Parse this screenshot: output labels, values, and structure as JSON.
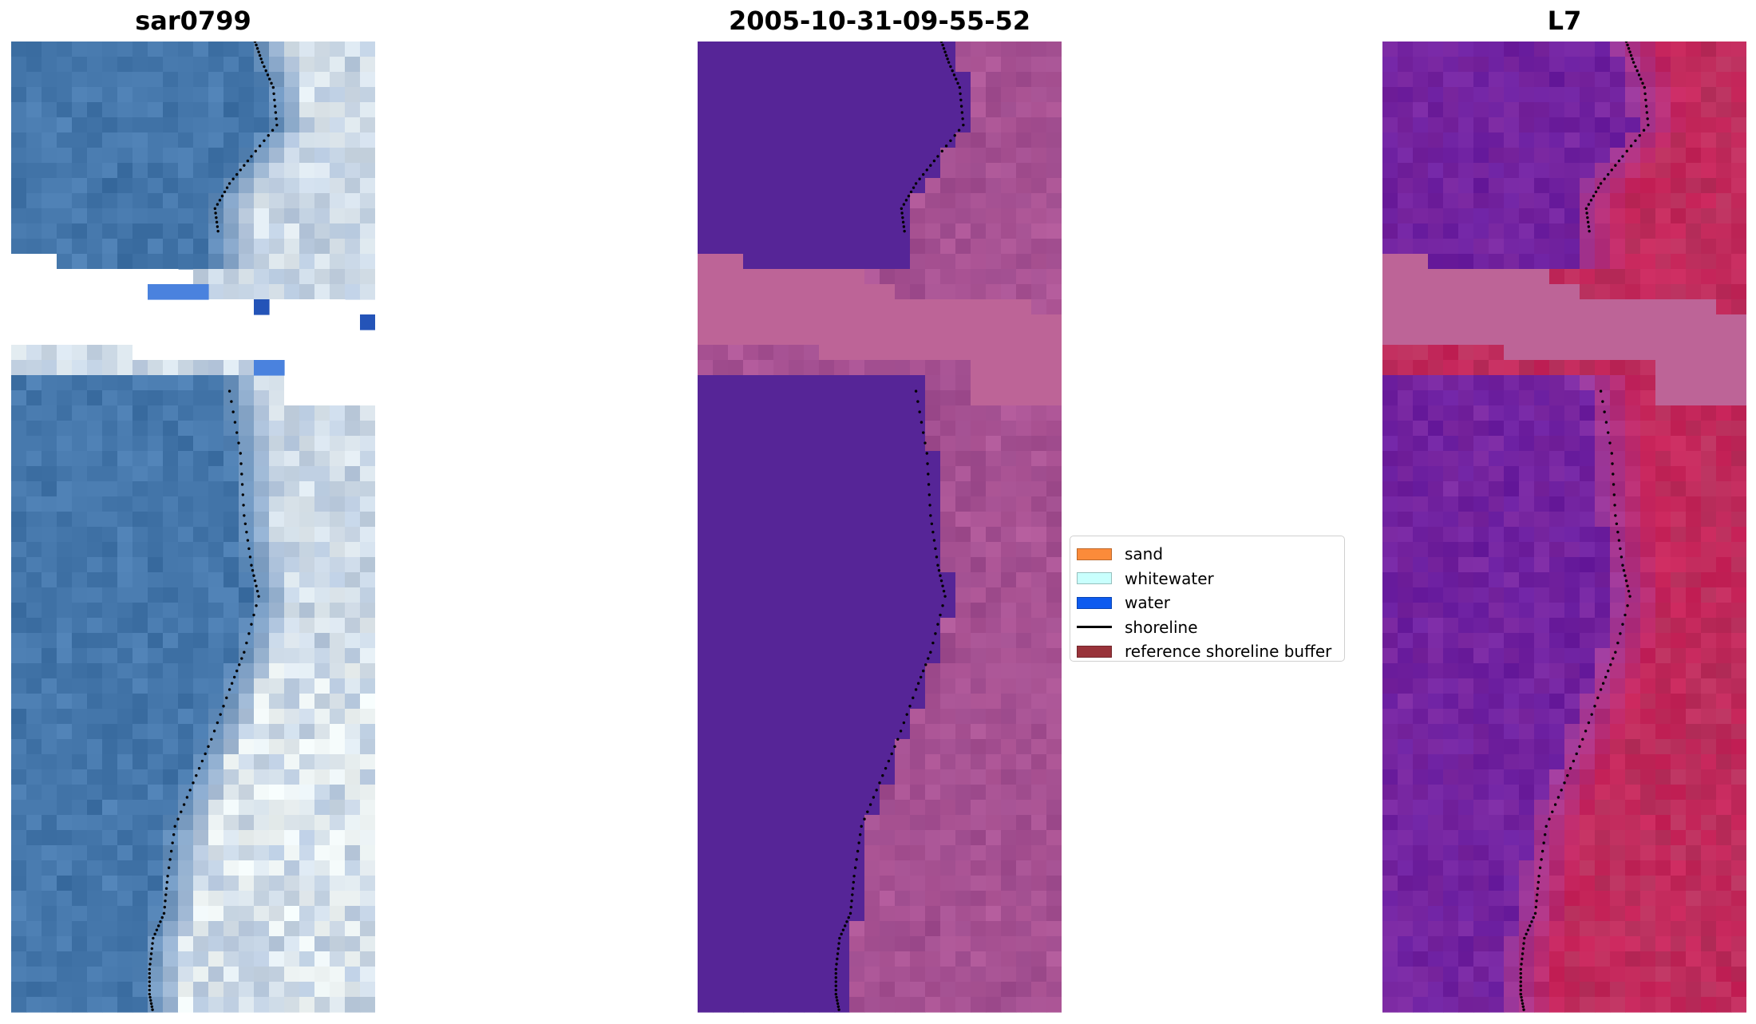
{
  "panels": [
    {
      "title": "sar0799",
      "image": "rgb-satellite-composite",
      "colors": {
        "water": "#4a7cb0",
        "water_dark": "#4072a6",
        "surf_light": "#b4c6dc",
        "surf_white": "#eef4f4",
        "blue_patch": "#4a82de",
        "blue_dark": "#2454b8"
      }
    },
    {
      "title": "2005-10-31-09-55-52",
      "image": "classified-overlay",
      "colors": {
        "water": "#562597",
        "land": "#9c4a8c",
        "land_light": "#b05898",
        "cloud_mask": "#bd6497"
      }
    },
    {
      "title": "L7",
      "image": "mndwi-index",
      "colors": {
        "low": "#6a1ea0",
        "mid": "#9a3aa0",
        "high": "#c8245a",
        "cloud_mask": "#bd6497"
      }
    }
  ],
  "shoreline": {
    "color": "#000000",
    "upper": [
      [
        0.67,
        0.0
      ],
      [
        0.69,
        0.1
      ],
      [
        0.72,
        0.22
      ],
      [
        0.73,
        0.4
      ],
      [
        0.66,
        0.55
      ],
      [
        0.6,
        0.68
      ],
      [
        0.56,
        0.8
      ],
      [
        0.57,
        0.93
      ]
    ],
    "lower": [
      [
        0.6,
        0.0
      ],
      [
        0.63,
        0.1
      ],
      [
        0.64,
        0.2
      ],
      [
        0.66,
        0.28
      ],
      [
        0.68,
        0.33
      ],
      [
        0.64,
        0.42
      ],
      [
        0.6,
        0.48
      ],
      [
        0.55,
        0.56
      ],
      [
        0.5,
        0.63
      ],
      [
        0.45,
        0.7
      ],
      [
        0.43,
        0.78
      ],
      [
        0.42,
        0.84
      ],
      [
        0.39,
        0.88
      ],
      [
        0.38,
        0.93
      ],
      [
        0.38,
        0.97
      ],
      [
        0.39,
        1.0
      ]
    ]
  },
  "legend": {
    "items": [
      {
        "label": "sand",
        "color": "#fb8b3a",
        "kind": "patch"
      },
      {
        "label": "whitewater",
        "color": "#c9fffd",
        "kind": "patch"
      },
      {
        "label": "water",
        "color": "#0d5bef",
        "kind": "patch"
      },
      {
        "label": "shoreline",
        "color": "#000000",
        "kind": "line"
      },
      {
        "label": "reference shoreline buffer",
        "color": "#99333a",
        "kind": "patch"
      }
    ]
  }
}
